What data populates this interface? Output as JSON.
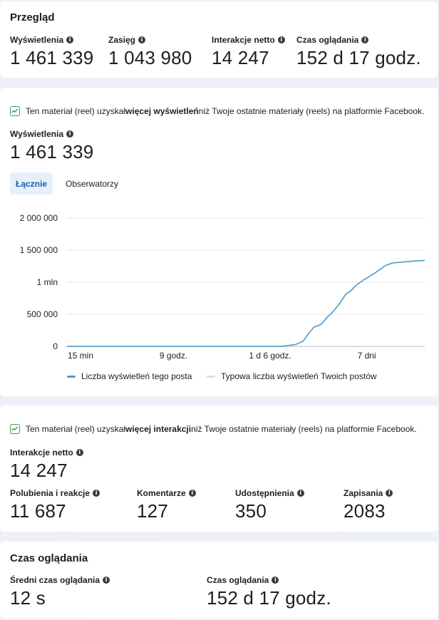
{
  "overview": {
    "title": "Przegląd",
    "metrics": [
      {
        "label": "Wyświetlenia",
        "value": "1 461 339"
      },
      {
        "label": "Zasięg",
        "value": "1 043 980"
      },
      {
        "label": "Interakcje netto",
        "value": "14 247"
      },
      {
        "label": "Czas oglądania",
        "value": "152 d 17 godz."
      }
    ]
  },
  "views": {
    "insight_pre": "Ten materiał (reel) uzyskał ",
    "insight_bold": "więcej wyświetleń",
    "insight_post": " niż Twoje ostatnie materiały (reels) na platformie Facebook.",
    "label": "Wyświetlenia",
    "value": "1 461 339",
    "tabs": {
      "total": "Łącznie",
      "followers": "Obserwatorzy"
    },
    "legend": {
      "post": "Liczba wyświetleń tego posta",
      "typical": "Typowa liczba wyświetleń Twoich postów"
    }
  },
  "interactions": {
    "insight_pre": "Ten materiał (reel) uzyskał ",
    "insight_bold": "więcej interakcji",
    "insight_post": " niż Twoje ostatnie materiały (reels) na platformie Facebook.",
    "label": "Interakcje netto",
    "value": "14 247",
    "metrics": [
      {
        "label": "Polubienia i reakcje",
        "value": "11 687"
      },
      {
        "label": "Komentarze",
        "value": "127"
      },
      {
        "label": "Udostępnienia",
        "value": "350"
      },
      {
        "label": "Zapisania",
        "value": "2083"
      }
    ]
  },
  "watch": {
    "title": "Czas oglądania",
    "metrics": [
      {
        "label": "Średni czas oglądania",
        "value": "12 s"
      },
      {
        "label": "Czas oglądania",
        "value": "152 d 17 godz."
      }
    ]
  },
  "colors": {
    "post_line": "#4a9ac9",
    "typical_line": "#d8dadf",
    "tab_active_bg": "#e7f0fa"
  },
  "chart_data": {
    "type": "line",
    "y_ticks": [
      {
        "value": 0,
        "label": "0"
      },
      {
        "value": 500000,
        "label": "500 000"
      },
      {
        "value": 1000000,
        "label": "1 mln"
      },
      {
        "value": 1500000,
        "label": "1 500 000"
      },
      {
        "value": 2000000,
        "label": "2 000 000"
      }
    ],
    "ylim": [
      0,
      2000000
    ],
    "xlim": [
      0,
      100
    ],
    "x_ticks": [
      {
        "value": 0,
        "label": "15 min"
      },
      {
        "value": 26,
        "label": "9 godz."
      },
      {
        "value": 53,
        "label": "1 d 6 godz."
      },
      {
        "value": 80,
        "label": "7 dni"
      }
    ],
    "series": [
      {
        "name": "Liczba wyświetleń tego posta",
        "x": [
          0,
          30,
          60,
          64,
          66,
          67.5,
          69,
          71,
          73,
          74,
          76,
          78,
          79,
          81,
          83,
          86,
          89,
          91,
          93,
          95,
          97,
          100
        ],
        "y": [
          0,
          0,
          0,
          30000,
          80000,
          200000,
          300000,
          340000,
          470000,
          520000,
          650000,
          820000,
          850000,
          960000,
          1040000,
          1140000,
          1260000,
          1300000,
          1310000,
          1320000,
          1330000,
          1340000
        ]
      },
      {
        "name": "Typowa liczba wyświetleń Twoich postów",
        "x": [
          0,
          100
        ],
        "y": [
          0,
          0
        ]
      }
    ],
    "grid": true,
    "legend": "bottom-left"
  }
}
